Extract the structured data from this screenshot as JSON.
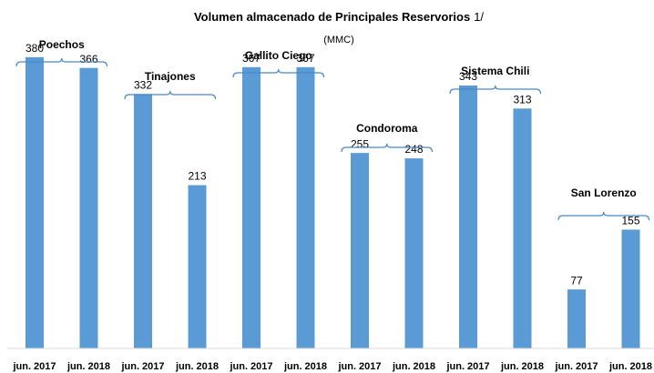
{
  "chart_data": {
    "type": "bar",
    "title": "Volumen almacenado de Principales Reservorios",
    "title_note": "1/",
    "subtitle": "(MMC)",
    "color": "#5b9bd5",
    "ylim": [
      0,
      400
    ],
    "groups": [
      {
        "name": "Poechos",
        "categories": [
          "jun. 2017",
          "jun. 2018"
        ],
        "values": [
          380,
          366
        ]
      },
      {
        "name": "Tinajones",
        "categories": [
          "jun. 2017",
          "jun. 2018"
        ],
        "values": [
          332,
          213
        ]
      },
      {
        "name": "Gallito Ciego",
        "categories": [
          "jun. 2017",
          "jun. 2018"
        ],
        "values": [
          367,
          367
        ]
      },
      {
        "name": "Condoroma",
        "categories": [
          "jun. 2017",
          "jun. 2018"
        ],
        "values": [
          255,
          248
        ]
      },
      {
        "name": "Sistema Chili",
        "categories": [
          "jun. 2017",
          "jun. 2018"
        ],
        "values": [
          343,
          313
        ]
      },
      {
        "name": "San Lorenzo",
        "categories": [
          "jun. 2017",
          "jun. 2018"
        ],
        "values": [
          77,
          155
        ]
      }
    ]
  }
}
